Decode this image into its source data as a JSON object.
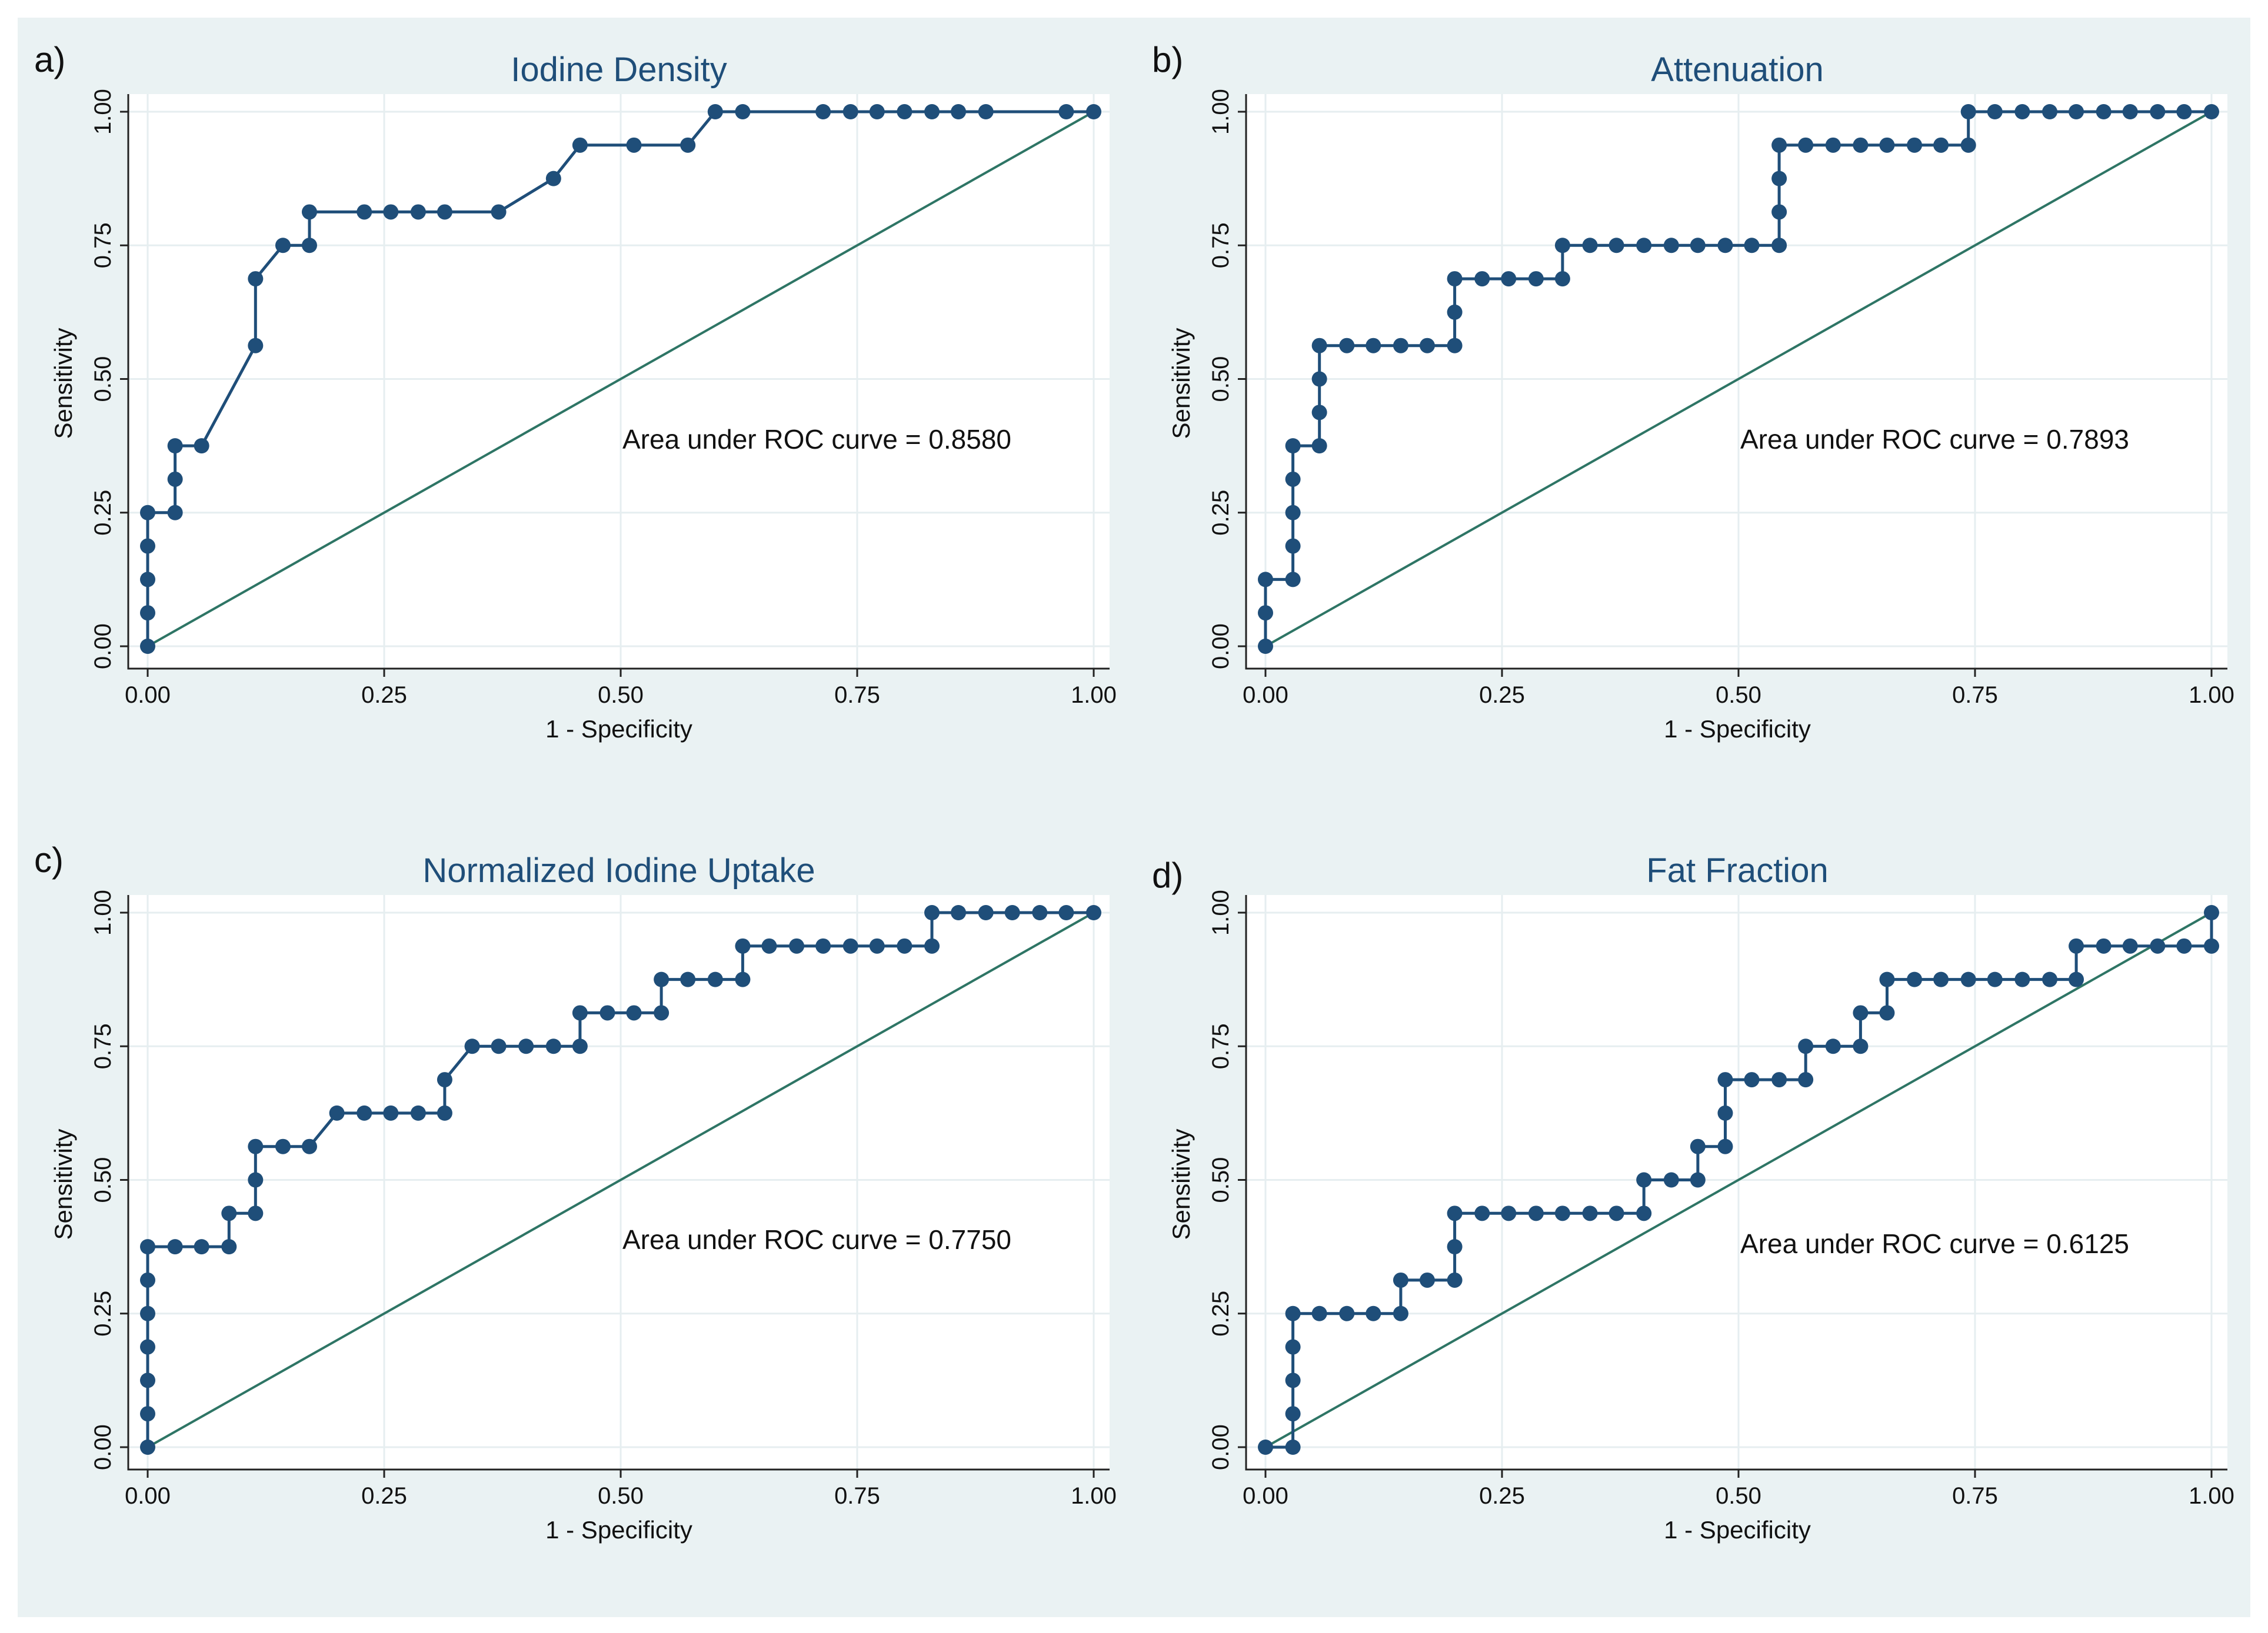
{
  "colors": {
    "outer_background": "#eaf2f3",
    "plot_background": "#ffffff",
    "grid": "#e6eef0",
    "roc_curve": "#1f4e79",
    "reference_line": "#2e7565",
    "title": "#1f4e79"
  },
  "chart_data": [
    {
      "type": "line",
      "panel_label": "a)",
      "title": "Iodine Density",
      "xlabel": "1 - Specificity",
      "ylabel": "Sensitivity",
      "xlim": [
        0,
        1
      ],
      "ylim": [
        0,
        1
      ],
      "xticks": [
        "0.00",
        "0.25",
        "0.50",
        "0.75",
        "1.00"
      ],
      "yticks": [
        "0.00",
        "0.25",
        "0.50",
        "0.75",
        "1.00"
      ],
      "grid": true,
      "annotation": "Area under ROC curve = 0.8580",
      "reference_line": [
        [
          0,
          0
        ],
        [
          1,
          1
        ]
      ],
      "x": [
        0,
        0,
        0,
        0,
        0,
        0.029,
        0.029,
        0.029,
        0.057,
        0.114,
        0.114,
        0.143,
        0.171,
        0.171,
        0.229,
        0.257,
        0.286,
        0.314,
        0.371,
        0.429,
        0.457,
        0.514,
        0.571,
        0.6,
        0.629,
        0.714,
        0.743,
        0.771,
        0.8,
        0.829,
        0.857,
        0.886,
        0.971,
        1
      ],
      "y": [
        0,
        0.0625,
        0.125,
        0.1875,
        0.25,
        0.25,
        0.3125,
        0.375,
        0.375,
        0.5625,
        0.6875,
        0.75,
        0.75,
        0.8125,
        0.8125,
        0.8125,
        0.8125,
        0.8125,
        0.8125,
        0.875,
        0.9375,
        0.9375,
        0.9375,
        1,
        1,
        1,
        1,
        1,
        1,
        1,
        1,
        1,
        1,
        1
      ]
    },
    {
      "type": "line",
      "panel_label": "b)",
      "title": "Attenuation",
      "xlabel": "1 - Specificity",
      "ylabel": "Sensitivity",
      "xlim": [
        0,
        1
      ],
      "ylim": [
        0,
        1
      ],
      "xticks": [
        "0.00",
        "0.25",
        "0.50",
        "0.75",
        "1.00"
      ],
      "yticks": [
        "0.00",
        "0.25",
        "0.50",
        "0.75",
        "1.00"
      ],
      "grid": true,
      "annotation": "Area under ROC curve = 0.7893",
      "reference_line": [
        [
          0,
          0
        ],
        [
          1,
          1
        ]
      ],
      "x": [
        0,
        0,
        0,
        0.029,
        0.029,
        0.029,
        0.029,
        0.029,
        0.057,
        0.057,
        0.057,
        0.057,
        0.086,
        0.114,
        0.143,
        0.171,
        0.2,
        0.2,
        0.2,
        0.229,
        0.257,
        0.286,
        0.314,
        0.314,
        0.343,
        0.371,
        0.4,
        0.429,
        0.457,
        0.486,
        0.514,
        0.543,
        0.543,
        0.543,
        0.543,
        0.571,
        0.6,
        0.629,
        0.657,
        0.686,
        0.714,
        0.743,
        0.743,
        0.771,
        0.8,
        0.829,
        0.857,
        0.886,
        0.914,
        0.943,
        0.971,
        1
      ],
      "y": [
        0,
        0.0625,
        0.125,
        0.125,
        0.1875,
        0.25,
        0.3125,
        0.375,
        0.375,
        0.4375,
        0.5,
        0.5625,
        0.5625,
        0.5625,
        0.5625,
        0.5625,
        0.5625,
        0.625,
        0.6875,
        0.6875,
        0.6875,
        0.6875,
        0.6875,
        0.75,
        0.75,
        0.75,
        0.75,
        0.75,
        0.75,
        0.75,
        0.75,
        0.75,
        0.8125,
        0.875,
        0.9375,
        0.9375,
        0.9375,
        0.9375,
        0.9375,
        0.9375,
        0.9375,
        0.9375,
        1,
        1,
        1,
        1,
        1,
        1,
        1,
        1,
        1,
        1
      ]
    },
    {
      "type": "line",
      "panel_label": "c)",
      "title": "Normalized Iodine Uptake",
      "xlabel": "1 - Specificity",
      "ylabel": "Sensitivity",
      "xlim": [
        0,
        1
      ],
      "ylim": [
        0,
        1
      ],
      "xticks": [
        "0.00",
        "0.25",
        "0.50",
        "0.75",
        "1.00"
      ],
      "yticks": [
        "0.00",
        "0.25",
        "0.50",
        "0.75",
        "1.00"
      ],
      "grid": true,
      "annotation": "Area under ROC curve = 0.7750",
      "reference_line": [
        [
          0,
          0
        ],
        [
          1,
          1
        ]
      ],
      "x": [
        0,
        0,
        0,
        0,
        0,
        0,
        0,
        0.029,
        0.057,
        0.086,
        0.086,
        0.114,
        0.114,
        0.114,
        0.143,
        0.171,
        0.2,
        0.229,
        0.257,
        0.286,
        0.314,
        0.314,
        0.343,
        0.371,
        0.4,
        0.429,
        0.457,
        0.457,
        0.486,
        0.514,
        0.543,
        0.543,
        0.571,
        0.6,
        0.629,
        0.629,
        0.657,
        0.686,
        0.714,
        0.743,
        0.771,
        0.8,
        0.829,
        0.829,
        0.857,
        0.886,
        0.914,
        0.943,
        0.971,
        1
      ],
      "y": [
        0,
        0.0625,
        0.125,
        0.1875,
        0.25,
        0.3125,
        0.375,
        0.375,
        0.375,
        0.375,
        0.4375,
        0.4375,
        0.5,
        0.5625,
        0.5625,
        0.5625,
        0.625,
        0.625,
        0.625,
        0.625,
        0.625,
        0.6875,
        0.75,
        0.75,
        0.75,
        0.75,
        0.75,
        0.8125,
        0.8125,
        0.8125,
        0.8125,
        0.875,
        0.875,
        0.875,
        0.875,
        0.9375,
        0.9375,
        0.9375,
        0.9375,
        0.9375,
        0.9375,
        0.9375,
        0.9375,
        1,
        1,
        1,
        1,
        1,
        1,
        1
      ]
    },
    {
      "type": "line",
      "panel_label": "d)",
      "title": "Fat Fraction",
      "xlabel": "1 - Specificity",
      "ylabel": "Sensitivity",
      "xlim": [
        0,
        1
      ],
      "ylim": [
        0,
        1
      ],
      "xticks": [
        "0.00",
        "0.25",
        "0.50",
        "0.75",
        "1.00"
      ],
      "yticks": [
        "0.00",
        "0.25",
        "0.50",
        "0.75",
        "1.00"
      ],
      "grid": true,
      "annotation": "Area under ROC curve = 0.6125",
      "reference_line": [
        [
          0,
          0
        ],
        [
          1,
          1
        ]
      ],
      "x": [
        0,
        0.029,
        0.029,
        0.029,
        0.029,
        0.029,
        0.057,
        0.086,
        0.114,
        0.143,
        0.143,
        0.171,
        0.2,
        0.2,
        0.2,
        0.229,
        0.257,
        0.286,
        0.314,
        0.343,
        0.371,
        0.4,
        0.4,
        0.429,
        0.457,
        0.457,
        0.486,
        0.486,
        0.486,
        0.514,
        0.543,
        0.571,
        0.571,
        0.6,
        0.629,
        0.629,
        0.657,
        0.657,
        0.686,
        0.714,
        0.743,
        0.771,
        0.8,
        0.829,
        0.857,
        0.857,
        0.886,
        0.914,
        0.943,
        0.971,
        1,
        1
      ],
      "y": [
        0,
        0,
        0.0625,
        0.125,
        0.1875,
        0.25,
        0.25,
        0.25,
        0.25,
        0.25,
        0.3125,
        0.3125,
        0.3125,
        0.375,
        0.4375,
        0.4375,
        0.4375,
        0.4375,
        0.4375,
        0.4375,
        0.4375,
        0.4375,
        0.5,
        0.5,
        0.5,
        0.5625,
        0.5625,
        0.625,
        0.6875,
        0.6875,
        0.6875,
        0.6875,
        0.75,
        0.75,
        0.75,
        0.8125,
        0.8125,
        0.875,
        0.875,
        0.875,
        0.875,
        0.875,
        0.875,
        0.875,
        0.875,
        0.9375,
        0.9375,
        0.9375,
        0.9375,
        0.9375,
        0.9375,
        1
      ]
    }
  ]
}
